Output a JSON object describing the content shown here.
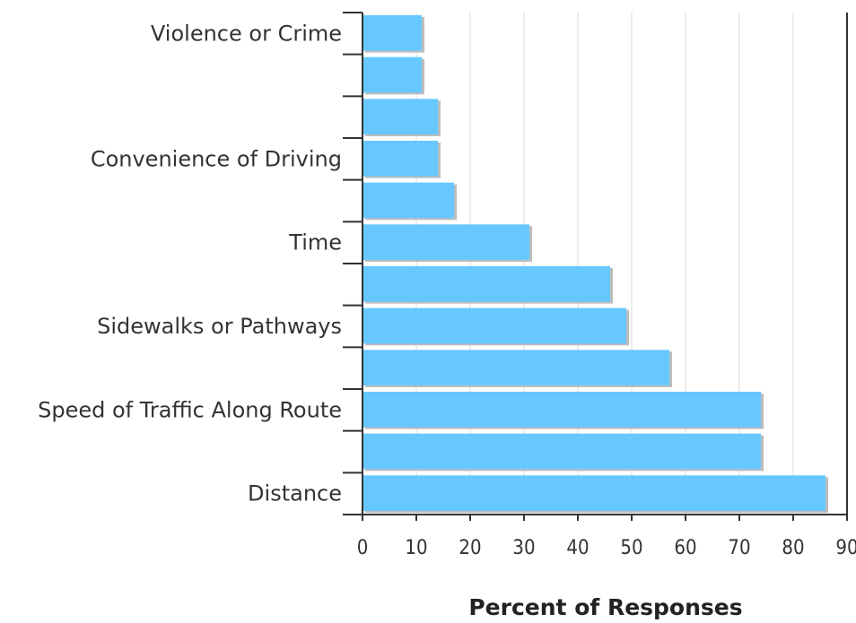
{
  "chart_data": {
    "type": "bar",
    "orientation": "horizontal",
    "xlabel": "Percent of Responses",
    "ylabel": "",
    "xlim": [
      0,
      90
    ],
    "x_ticks": [
      "0",
      "10",
      "20",
      "30",
      "40",
      "50",
      "60",
      "70",
      "80",
      "90"
    ],
    "grid": true,
    "categories": [
      "Violence or Crime",
      "",
      "",
      "Convenience of Driving",
      "",
      "Time",
      "",
      "Sidewalks or Pathways",
      "",
      "Speed of Traffic Along Route",
      "",
      "Distance"
    ],
    "values": [
      11,
      11,
      14,
      14,
      17,
      31,
      46,
      49,
      57,
      74,
      74,
      86
    ],
    "colors": {
      "bar": "#66c8ff",
      "shadow": "#bdbdbd",
      "grid": "#d9d9d9",
      "axis": "#333333"
    }
  }
}
